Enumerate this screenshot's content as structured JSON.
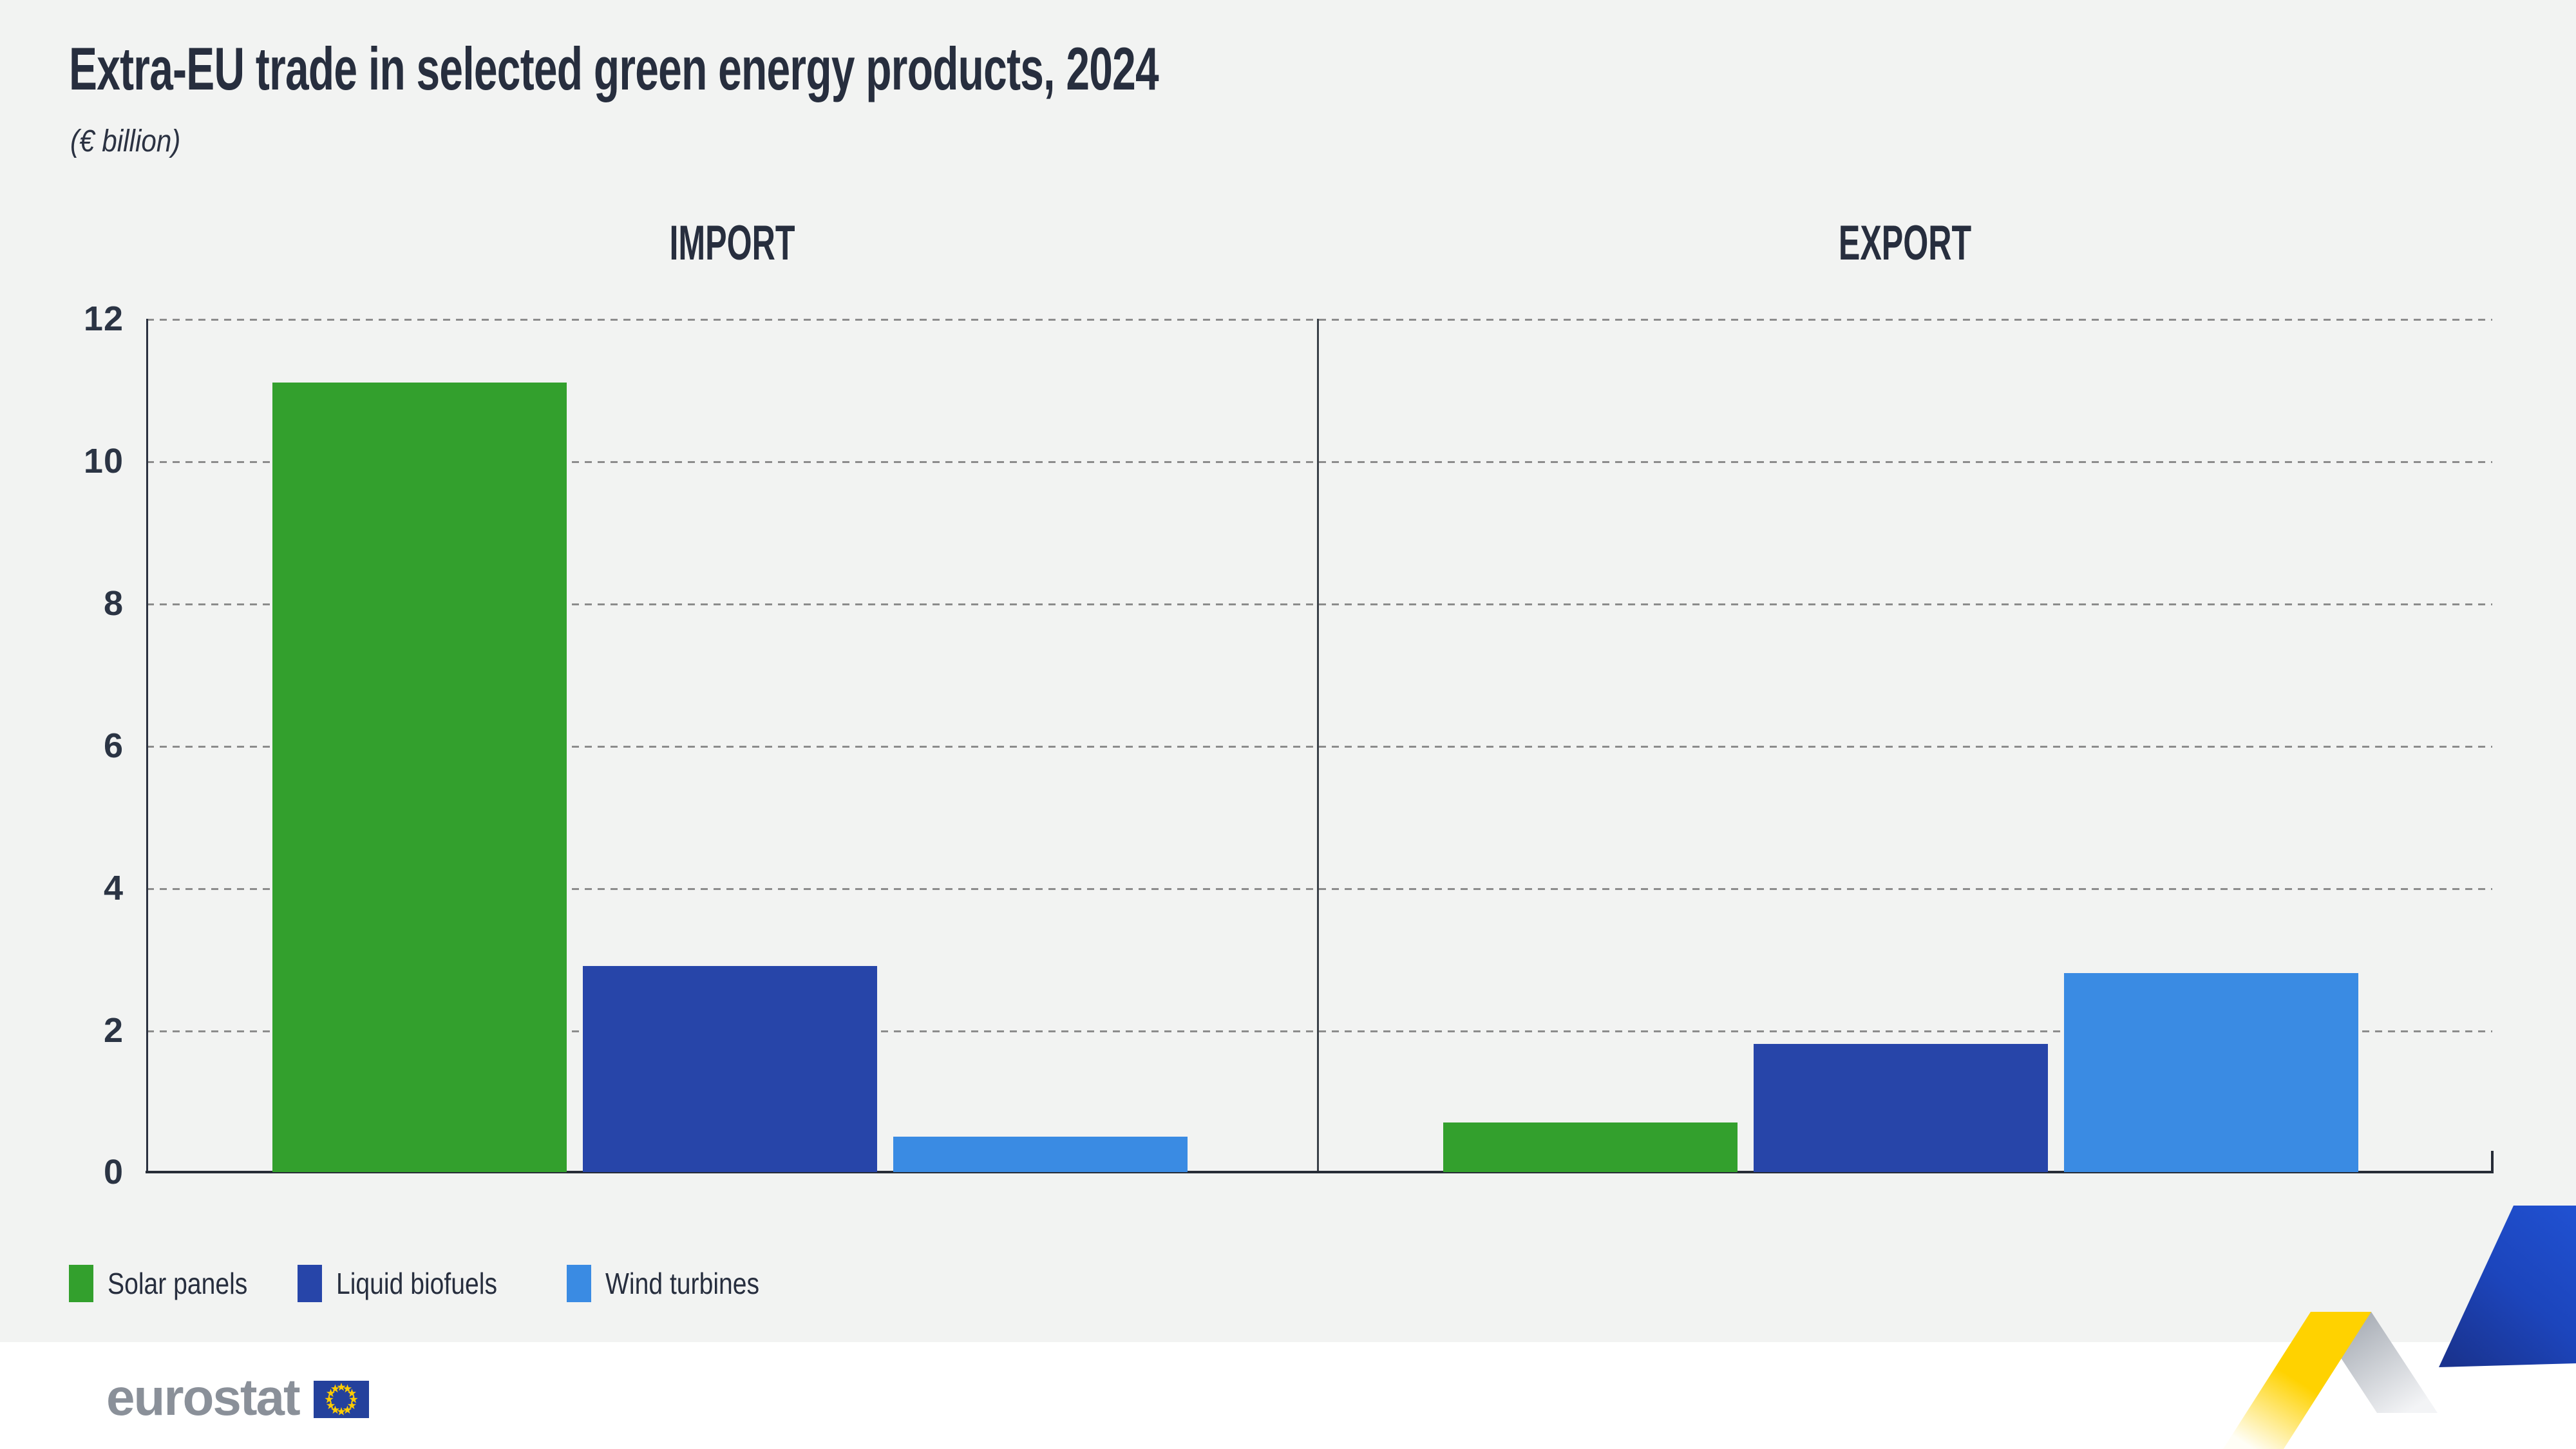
{
  "title": "Extra-EU trade in selected green energy products, 2024",
  "subtitle": "(€ billion)",
  "panels": [
    {
      "label": "IMPORT"
    },
    {
      "label": "EXPORT"
    }
  ],
  "y_axis": {
    "ticks": [
      "12",
      "10",
      "8",
      "6",
      "4",
      "2",
      "0"
    ]
  },
  "legend": [
    {
      "label": "Solar panels",
      "color": "#33a02d"
    },
    {
      "label": "Liquid biofuels",
      "color": "#2745a9"
    },
    {
      "label": "Wind turbines",
      "color": "#3a8be3"
    }
  ],
  "footer": {
    "logo_text": "eurostat"
  },
  "colors": {
    "background": "#f2f3f2",
    "text": "#272e3e",
    "axis": "#2b3140",
    "gridline": "#8c8c8c",
    "flag_blue": "#24419c",
    "flag_star": "#ffcc00",
    "ribbon_yellow": "#ffd200",
    "ribbon_blue": "#1c45bc"
  },
  "chart_data": {
    "type": "bar",
    "title": "Extra-EU trade in selected green energy products, 2024",
    "unit": "€ billion",
    "categories": [
      "Solar panels",
      "Liquid biofuels",
      "Wind turbines"
    ],
    "series": [
      {
        "name": "IMPORT",
        "values": [
          11.1,
          2.9,
          0.5
        ]
      },
      {
        "name": "EXPORT",
        "values": [
          0.7,
          1.8,
          2.8
        ]
      }
    ],
    "ylim": [
      0,
      12
    ],
    "ytick_step": 2,
    "grid": "horizontal-dashed",
    "legend_position": "bottom-left"
  }
}
